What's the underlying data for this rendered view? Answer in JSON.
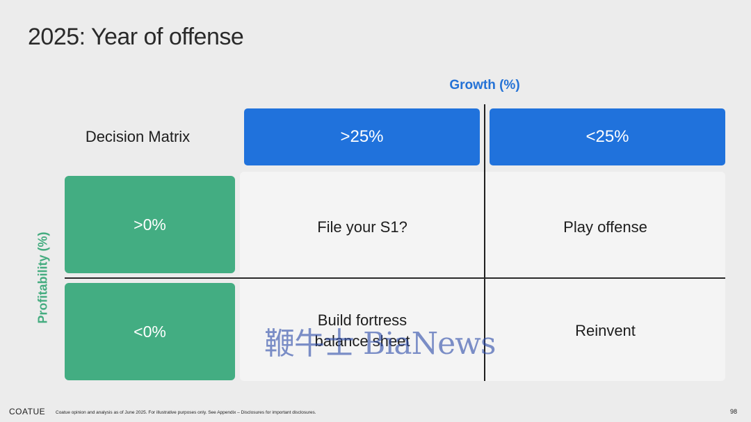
{
  "slide": {
    "title": "2025: Year of offense",
    "page_number": "98"
  },
  "matrix": {
    "label": "Decision Matrix",
    "x_axis_label": "Growth (%)",
    "y_axis_label": "Profitability (%)",
    "columns": [
      ">25%",
      "<25%"
    ],
    "rows": [
      ">0%",
      "<0%"
    ],
    "cells": {
      "r1c1": "File your S1?",
      "r1c2": "Play offense",
      "r2c1_line1": "Build fortress",
      "r2c1_line2": "balance sheet",
      "r2c2": "Reinvent"
    }
  },
  "watermark": {
    "text": "鞭牛士 BiaNews"
  },
  "footer": {
    "brand": "COATUE",
    "note": "Coatue opinion and analysis as of June 2025. For illustrative purposes only.  See Appendix – Disclosures for important disclosures."
  },
  "colors": {
    "column_header": "#2072dc",
    "row_header": "#43ad82",
    "x_axis_label": "#2472d6",
    "y_axis_label": "#45ac80",
    "background": "#ececec",
    "panel": "#f4f4f4"
  }
}
